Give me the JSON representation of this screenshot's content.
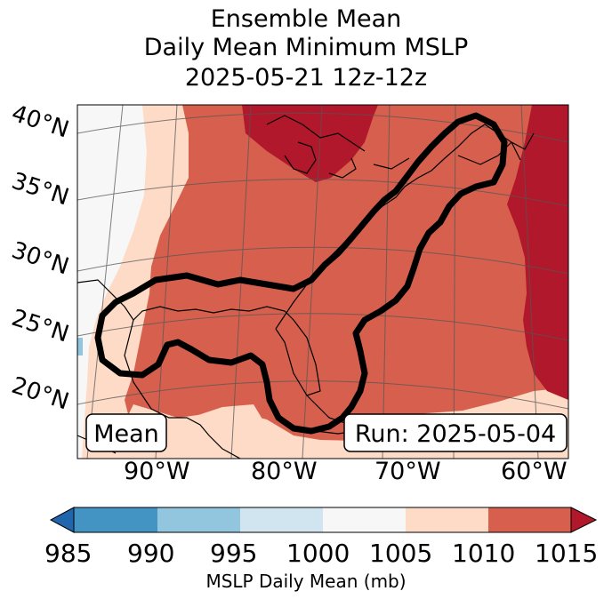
{
  "title": {
    "line1": "Ensemble Mean",
    "line2": "Daily Mean Minimum MSLP",
    "line3": "2025-05-21 12z-12z"
  },
  "map": {
    "latitude_labels": [
      "40°N",
      "35°N",
      "30°N",
      "25°N",
      "20°N"
    ],
    "longitude_labels": [
      "90°W",
      "80°W",
      "70°W",
      "60°W"
    ],
    "mean_box_label": "Mean",
    "run_box_label": "Run: 2025-05-04",
    "fill_colors": {
      "lt_990": "#4393c3",
      "990_995": "#92c5de",
      "995_1000": "#d1e5f0",
      "1000_1005": "#f7f7f7",
      "1005_1010": "#fddbc7",
      "1010_1015": "#d6604d",
      "gt_1015": "#b2182b"
    }
  },
  "colorbar": {
    "ticks": [
      "985",
      "990",
      "995",
      "1000",
      "1005",
      "1010",
      "1015"
    ],
    "label": "MSLP Daily Mean (mb)",
    "colors": [
      "#2166ac",
      "#4393c3",
      "#92c5de",
      "#d1e5f0",
      "#f7f7f7",
      "#fddbc7",
      "#d6604d",
      "#b2182b"
    ]
  }
}
